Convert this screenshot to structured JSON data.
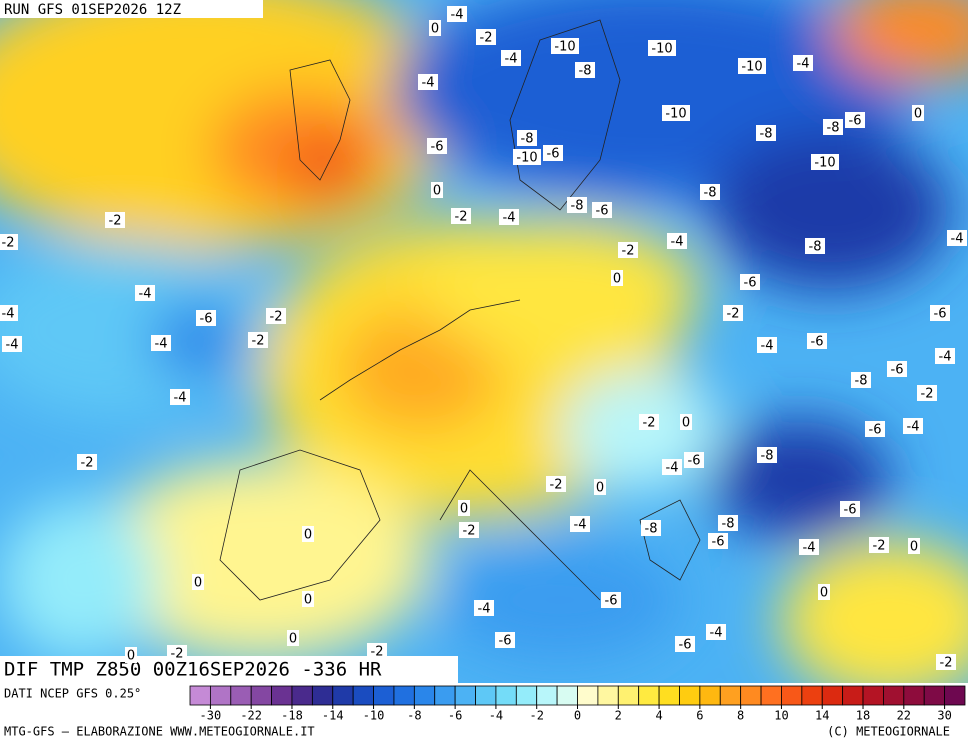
{
  "header": {
    "run": "RUN GFS 01SEP2026 12Z"
  },
  "map": {
    "title": "DIF TMP Z850 00Z16SEP2026 -336 HR",
    "contour_labels": [
      "-4",
      "0",
      "-2",
      "-10",
      "-10",
      "-4",
      "-8",
      "-10",
      "-4",
      "-4",
      "-10",
      "-8",
      "-8",
      "-6",
      "0",
      "-8",
      "-6",
      "-10",
      "-6",
      "-10",
      "0",
      "-8",
      "-8",
      "-6",
      "-2",
      "-4",
      "-2",
      "-2",
      "-4",
      "-8",
      "-2",
      "-4",
      "0",
      "-6",
      "-4",
      "-6",
      "-2",
      "-2",
      "-6",
      "-4",
      "-4",
      "-2",
      "-4",
      "-4",
      "-6",
      "-4",
      "-8",
      "-6",
      "-2",
      "-4",
      "-2",
      "0",
      "-6",
      "-4",
      "-2",
      "-4",
      "-6",
      "-8",
      "-2",
      "0",
      "0",
      "-2",
      "-4",
      "-8",
      "-8",
      "-6",
      "-6",
      "-4",
      "-2",
      "0",
      "0",
      "0",
      "0",
      "0",
      "-6",
      "-4",
      "-4",
      "-6",
      "-6",
      "0",
      "-2",
      "-2",
      "-2",
      "0"
    ]
  },
  "footer": {
    "source": "DATI NCEP GFS 0.25°",
    "credit": "MTG-GFS – ELABORAZIONE WWW.METEOGIORNALE.IT",
    "copyright": "(C) METEOGIORNALE"
  },
  "legend": {
    "colors": [
      "#c58ad6",
      "#b074c6",
      "#9a5db4",
      "#8447a2",
      "#6a3292",
      "#4a2a8c",
      "#2e2d94",
      "#1f3aa8",
      "#1a4cc0",
      "#1c5fd4",
      "#2070e0",
      "#2a86ea",
      "#3a9cf0",
      "#4cb2f4",
      "#5ec8f6",
      "#74dcf8",
      "#94ecfa",
      "#b8f6fa",
      "#d8fcf2",
      "#fffccc",
      "#fff7a0",
      "#fff170",
      "#ffea40",
      "#ffde20",
      "#ffcc10",
      "#ffb810",
      "#ffa020",
      "#ff8a20",
      "#ff7020",
      "#f85818",
      "#ec4010",
      "#dc2a10",
      "#c81c18",
      "#b41424",
      "#a01030",
      "#8e0c3c",
      "#7e0a46",
      "#6e0850"
    ],
    "labels": [
      -30,
      -22,
      -18,
      -14,
      -10,
      -8,
      -6,
      -4,
      -2,
      0,
      2,
      4,
      6,
      8,
      10,
      14,
      18,
      22,
      30
    ]
  }
}
